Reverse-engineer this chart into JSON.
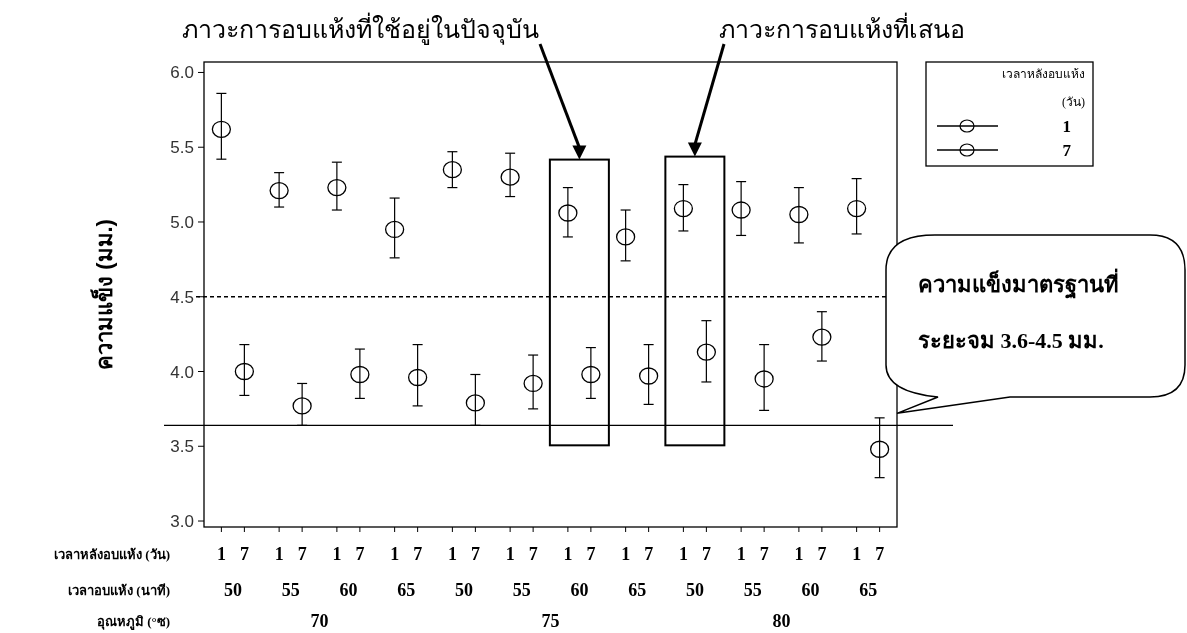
{
  "chart_data": {
    "type": "scatter",
    "ylabel": "ความแข็ง (มม.)",
    "xlabel": "เวลาหลังอบแห้ง (วัน)",
    "legend_title": "เวลาหลังอบแห้ง (วัน)",
    "legend": "top right",
    "marker": "circle",
    "categories": [
      "1",
      "7",
      "1",
      "7",
      "1",
      "7",
      "1",
      "7",
      "1",
      "7",
      "1",
      "7",
      "1",
      "7",
      "1",
      "7",
      "1",
      "7",
      "1",
      "7",
      "1",
      "7",
      "1",
      "7"
    ],
    "ylim": [
      2.96,
      6.07
    ],
    "yticks": [
      {
        "value": 3,
        "label": "3.0"
      },
      {
        "value": 3.5,
        "label": "3.5"
      },
      {
        "value": 4,
        "label": "4.0"
      },
      {
        "value": 4.5,
        "label": "4.5"
      },
      {
        "value": 5,
        "label": "5.0"
      },
      {
        "value": 5.5,
        "label": "5.5"
      },
      {
        "value": 6,
        "label": "6.0"
      }
    ],
    "series": [
      {
        "name": "1",
        "color": "#000000",
        "values": [
          5.62,
          null,
          5.21,
          null,
          5.23,
          null,
          4.95,
          null,
          5.35,
          null,
          5.3,
          null,
          5.06,
          null,
          4.9,
          null,
          5.09,
          null,
          5.08,
          null,
          5.05,
          null,
          5.09,
          null
        ],
        "errors": [
          [
            5.42,
            5.86
          ],
          null,
          [
            5.1,
            5.33
          ],
          null,
          [
            5.08,
            5.4
          ],
          null,
          [
            4.76,
            5.16
          ],
          null,
          [
            5.23,
            5.47
          ],
          null,
          [
            5.17,
            5.46
          ],
          null,
          [
            4.9,
            5.23
          ],
          null,
          [
            4.74,
            5.08
          ],
          null,
          [
            4.94,
            5.25
          ],
          null,
          [
            4.91,
            5.27
          ],
          null,
          [
            4.86,
            5.23
          ],
          null,
          [
            4.92,
            5.29
          ],
          null
        ]
      },
      {
        "name": "7",
        "color": "#000000",
        "values": [
          null,
          4.0,
          null,
          3.77,
          null,
          3.98,
          null,
          3.96,
          null,
          3.79,
          null,
          3.92,
          null,
          3.98,
          null,
          3.97,
          null,
          4.13,
          null,
          3.95,
          null,
          4.23,
          null,
          3.48
        ],
        "errors": [
          null,
          [
            3.84,
            4.18
          ],
          null,
          [
            3.64,
            3.92
          ],
          null,
          [
            3.82,
            4.15
          ],
          null,
          [
            3.77,
            4.18
          ],
          null,
          [
            3.64,
            3.98
          ],
          null,
          [
            3.75,
            4.11
          ],
          null,
          [
            3.82,
            4.16
          ],
          null,
          [
            3.78,
            4.18
          ],
          null,
          [
            3.93,
            4.34
          ],
          null,
          [
            3.74,
            4.18
          ],
          null,
          [
            4.07,
            4.4
          ],
          null,
          [
            3.29,
            3.69
          ]
        ]
      }
    ],
    "ref_lines": [
      {
        "axis": "y",
        "value": 4.5,
        "line_style": "dashed",
        "color": "#000000"
      },
      {
        "axis": "y",
        "value": 3.64,
        "line_style": "solid",
        "color": "#000000"
      }
    ],
    "annotations": [
      "ภาวะการอบแห้งที่ใช้อยู่ในปัจจุบัน",
      "ภาวะการอบแห้งที่เสนอ",
      "ความแข็งมาตรฐานที่\nระยะจม 3.6-4.5 มม.",
      "เวลาอบแห้ง (นาที)",
      "50",
      "55",
      "60",
      "65",
      "50",
      "55",
      "60",
      "65",
      "50",
      "55",
      "60",
      "65",
      "อุณหภูมิ (°ซ)",
      "70",
      "75",
      "80"
    ]
  }
}
